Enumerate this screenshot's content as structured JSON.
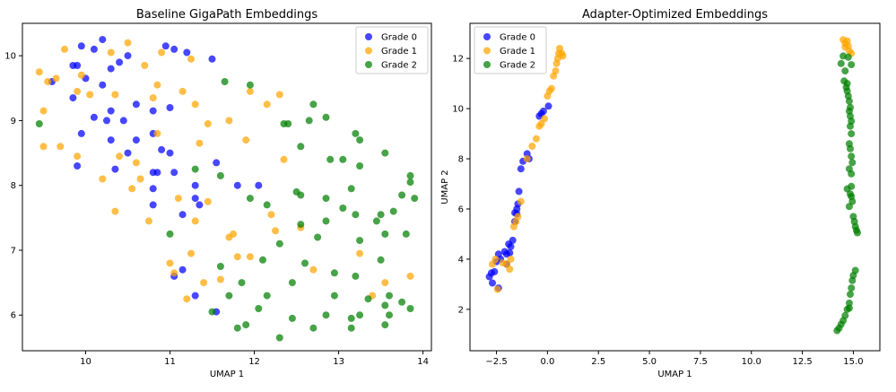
{
  "chart_data": [
    {
      "type": "scatter",
      "title": "Baseline GigaPath Embeddings",
      "xlabel": "UMAP 1",
      "ylabel": "",
      "xlim": [
        9.25,
        14.1
      ],
      "ylim": [
        5.45,
        10.5
      ],
      "xticks": [
        10,
        11,
        12,
        13,
        14
      ],
      "xtick_labels": [
        "10",
        "11",
        "12",
        "13",
        "14"
      ],
      "yticks": [
        6,
        7,
        8,
        9,
        10
      ],
      "ytick_labels": [
        "6",
        "7",
        "8",
        "9",
        "10"
      ],
      "legend_position": "top-right",
      "series": [
        {
          "name": "Grade 0",
          "color": "#0000ff",
          "x": [
            9.6,
            9.9,
            9.95,
            10.0,
            10.1,
            10.2,
            10.3,
            10.4,
            10.5,
            10.6,
            10.8,
            10.95,
            11.05,
            11.2,
            11.5,
            9.85,
            9.95,
            10.2,
            10.3,
            10.45,
            10.6,
            10.8,
            11.0,
            9.9,
            10.1,
            10.25,
            10.3,
            10.35,
            10.5,
            10.9,
            11.0,
            11.05,
            10.8,
            10.85,
            11.3,
            11.55,
            10.8,
            10.8,
            11.3,
            11.15,
            11.35,
            11.15,
            11.05,
            11.3,
            11.8,
            12.05,
            11.55,
            9.85
          ],
          "y": [
            9.6,
            9.85,
            10.15,
            9.65,
            10.1,
            10.25,
            9.8,
            9.9,
            10.0,
            9.25,
            9.15,
            10.15,
            10.1,
            10.05,
            9.95,
            9.35,
            8.8,
            9.55,
            9.15,
            9.0,
            8.7,
            8.8,
            9.2,
            8.3,
            9.05,
            9.0,
            8.7,
            8.25,
            8.5,
            8.55,
            8.5,
            8.2,
            8.2,
            8.2,
            8.0,
            8.35,
            7.95,
            7.7,
            7.8,
            7.55,
            7.7,
            6.7,
            6.6,
            6.3,
            8.0,
            8.0,
            6.05,
            9.85
          ]
        },
        {
          "name": "Grade 1",
          "color": "#ffa500",
          "x": [
            9.45,
            9.75,
            9.9,
            10.3,
            10.5,
            10.7,
            10.9,
            11.25,
            9.5,
            9.5,
            9.7,
            9.9,
            10.05,
            10.35,
            10.4,
            10.6,
            10.8,
            10.85,
            11.15,
            11.3,
            11.45,
            11.7,
            11.95,
            12.15,
            12.3,
            9.65,
            9.95,
            10.2,
            10.35,
            10.55,
            10.65,
            10.75,
            11.35,
            11.45,
            11.75,
            11.9,
            12.35,
            10.85,
            11.1,
            11.3,
            11.7,
            11.8,
            12.2,
            12.25,
            11.25,
            11.0,
            11.05,
            11.2,
            11.4,
            11.6,
            11.95,
            12.7,
            12.55,
            13.25,
            13.4,
            13.55,
            13.85,
            9.55
          ],
          "y": [
            9.75,
            10.1,
            9.45,
            10.05,
            10.2,
            9.85,
            10.05,
            9.95,
            9.15,
            8.6,
            8.6,
            8.45,
            9.4,
            9.4,
            8.45,
            8.35,
            9.35,
            8.8,
            9.45,
            9.25,
            8.95,
            9.0,
            9.45,
            9.25,
            9.4,
            9.65,
            9.7,
            8.1,
            7.6,
            7.95,
            8.1,
            7.45,
            8.65,
            7.75,
            7.25,
            8.7,
            8.4,
            9.55,
            7.8,
            7.45,
            7.2,
            6.9,
            7.55,
            7.3,
            6.95,
            6.8,
            6.65,
            6.25,
            6.5,
            6.55,
            6.9,
            6.7,
            7.35,
            6.95,
            6.3,
            6.5,
            6.6,
            9.6
          ]
        },
        {
          "name": "Grade 2",
          "color": "#008000",
          "x": [
            9.45,
            11.65,
            11.95,
            12.35,
            12.4,
            12.65,
            12.7,
            12.85,
            13.2,
            13.25,
            13.55,
            12.55,
            12.9,
            13.05,
            13.25,
            13.85,
            13.85,
            11.3,
            11.6,
            11.95,
            12.15,
            12.5,
            12.55,
            12.85,
            13.15,
            13.2,
            13.5,
            13.65,
            13.75,
            13.9,
            12.55,
            12.75,
            12.85,
            13.05,
            13.25,
            13.45,
            13.55,
            13.8,
            11.0,
            11.6,
            11.85,
            12.1,
            12.3,
            12.45,
            12.6,
            12.95,
            13.2,
            13.5,
            13.6,
            13.85,
            11.7,
            11.8,
            11.9,
            12.05,
            12.15,
            12.3,
            12.45,
            12.7,
            12.95,
            13.15,
            13.25,
            13.35,
            13.55,
            13.6,
            13.75,
            11.5,
            12.85,
            13.15,
            13.55
          ],
          "y": [
            8.95,
            9.6,
            9.55,
            8.95,
            8.95,
            9.0,
            9.25,
            9.05,
            8.8,
            8.7,
            8.5,
            8.6,
            8.4,
            8.4,
            8.3,
            8.05,
            8.15,
            8.25,
            8.15,
            7.8,
            7.7,
            7.9,
            7.85,
            7.8,
            7.95,
            7.55,
            7.55,
            7.6,
            7.85,
            7.8,
            7.4,
            7.2,
            7.45,
            7.65,
            7.15,
            7.45,
            7.25,
            7.25,
            7.25,
            6.75,
            6.5,
            6.85,
            7.1,
            6.5,
            6.8,
            6.65,
            6.6,
            6.85,
            6.3,
            6.1,
            6.3,
            5.8,
            5.85,
            6.1,
            6.3,
            5.65,
            5.95,
            5.8,
            6.3,
            5.95,
            6.0,
            6.25,
            6.15,
            6.0,
            6.2,
            6.05,
            6.0,
            5.8,
            5.85
          ]
        }
      ]
    },
    {
      "type": "scatter",
      "title": "Adapter-Optimized Embeddings",
      "xlabel": "UMAP 1",
      "ylabel": "UMAP 2",
      "xlim": [
        -3.8,
        16.3
      ],
      "ylim": [
        0.35,
        13.4
      ],
      "xticks": [
        -2.5,
        0.0,
        2.5,
        5.0,
        7.5,
        10.0,
        12.5,
        15.0
      ],
      "xtick_labels": [
        "−2.5",
        "0.0",
        "2.5",
        "5.0",
        "7.5",
        "10.0",
        "12.5",
        "15.0"
      ],
      "yticks": [
        2,
        4,
        6,
        8,
        10,
        12
      ],
      "ytick_labels": [
        "2",
        "4",
        "6",
        "8",
        "10",
        "12"
      ],
      "legend_position": "top-left",
      "series": [
        {
          "name": "Grade 0",
          "color": "#0000ff",
          "x": [
            -2.85,
            -2.75,
            -2.6,
            -2.5,
            -2.4,
            -2.3,
            -2.1,
            -2.0,
            -1.9,
            -1.8,
            -1.7,
            -1.6,
            -1.5,
            -1.45,
            -1.4,
            -1.3,
            -1.2,
            -1.0,
            -0.9,
            -0.4,
            -0.3,
            -0.2,
            0.05,
            -2.7,
            -2.4,
            -1.6,
            -2.0,
            -1.5,
            -1.85
          ],
          "y": [
            3.3,
            3.45,
            3.5,
            3.9,
            4.2,
            4.0,
            4.3,
            4.2,
            4.6,
            4.5,
            4.75,
            5.5,
            5.8,
            6.2,
            6.7,
            7.6,
            7.9,
            8.2,
            8.0,
            9.7,
            9.8,
            9.9,
            10.1,
            3.05,
            2.85,
            5.85,
            3.8,
            6.0,
            4.25
          ]
        },
        {
          "name": "Grade 1",
          "color": "#ffa500",
          "x": [
            -2.7,
            -2.55,
            -2.2,
            -2.0,
            -1.8,
            -1.65,
            -1.55,
            -1.45,
            -1.3,
            -1.0,
            -0.75,
            -0.55,
            -0.4,
            -0.3,
            -0.15,
            0.0,
            0.1,
            0.2,
            0.3,
            0.4,
            0.5,
            0.55,
            0.6,
            0.7,
            0.45,
            0.75,
            14.5,
            14.6,
            14.7,
            14.75,
            14.8,
            14.9,
            14.6,
            -2.45,
            -1.85
          ],
          "y": [
            3.8,
            4.0,
            3.85,
            3.8,
            4.0,
            5.3,
            5.5,
            5.7,
            6.3,
            8.0,
            8.5,
            8.8,
            9.3,
            9.4,
            9.6,
            10.5,
            10.7,
            10.8,
            11.3,
            11.5,
            12.0,
            12.2,
            12.4,
            12.2,
            11.8,
            12.1,
            12.75,
            12.6,
            12.7,
            12.5,
            12.3,
            12.2,
            12.45,
            2.8,
            3.6
          ]
        },
        {
          "name": "Grade 2",
          "color": "#008000",
          "x": [
            14.4,
            14.5,
            14.6,
            14.55,
            14.65,
            14.7,
            14.75,
            14.8,
            14.85,
            14.8,
            14.7,
            14.9,
            14.85,
            14.9,
            14.8,
            14.85,
            14.9,
            14.95,
            14.8,
            14.9,
            14.7,
            14.85,
            14.9,
            14.95,
            14.8,
            15.0,
            15.05,
            15.1,
            15.15,
            15.2,
            15.1,
            15.0,
            14.95,
            14.9,
            14.85,
            14.8,
            14.7,
            14.6,
            14.5,
            14.4,
            14.3,
            14.2,
            14.9,
            14.75,
            14.85,
            14.9,
            14.8
          ],
          "y": [
            11.8,
            12.1,
            11.5,
            11.1,
            10.85,
            10.7,
            10.5,
            10.3,
            10.05,
            9.9,
            11.0,
            9.5,
            9.3,
            9.0,
            8.6,
            8.4,
            8.1,
            7.85,
            7.6,
            7.4,
            6.8,
            6.6,
            6.5,
            6.3,
            6.1,
            5.7,
            5.5,
            5.3,
            5.15,
            5.05,
            3.55,
            3.35,
            3.15,
            2.85,
            2.6,
            2.25,
            2.0,
            1.75,
            1.55,
            1.4,
            1.25,
            1.15,
            11.75,
            12.05,
            9.7,
            6.9,
            2.05
          ]
        }
      ]
    }
  ]
}
